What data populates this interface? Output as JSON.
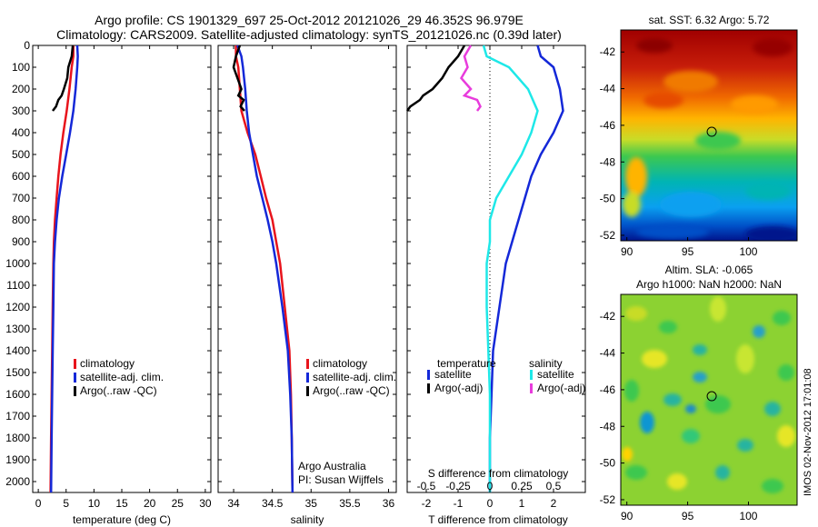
{
  "header": {
    "line1": "Argo profile: CS 1901329_697 25-Oct-2012 20121026_29 46.352S 96.979E",
    "line2": "Climatology: CARS2009. Satellite-adjusted climatology: synTS_20121026.nc (0.39d later)"
  },
  "stamp": "IMOS 02-Nov-2012 17:01:08",
  "colors": {
    "red": "#e8141c",
    "blue": "#1428d8",
    "black": "#000000",
    "cyan": "#1ee8e8",
    "magenta": "#e83cdc"
  },
  "chart_data": [
    {
      "type": "line",
      "xlabel": "temperature (deg C)",
      "xlim": [
        -1,
        31
      ],
      "ylim": [
        0,
        2050
      ],
      "xticks": [
        "0",
        "5",
        "10",
        "15",
        "20",
        "25",
        "30"
      ],
      "xtick_values": [
        0,
        5,
        10,
        15,
        20,
        25,
        30
      ],
      "yticks": [
        "0",
        "100",
        "200",
        "300",
        "400",
        "500",
        "600",
        "700",
        "800",
        "900",
        "1000",
        "1100",
        "1200",
        "1300",
        "1400",
        "1500",
        "1600",
        "1700",
        "1800",
        "1900",
        "2000"
      ],
      "legend": [
        "climatology",
        "satellite-adj. clim.",
        "Argo(..raw -QC)"
      ],
      "legend_placement": "bottom-center",
      "series": [
        {
          "name": "climatology",
          "color": "red",
          "x": [
            6.3,
            6.3,
            6.0,
            5.6,
            5.1,
            4.5,
            4.0,
            3.6,
            3.3,
            3.0,
            2.8,
            2.7,
            2.6,
            2.5,
            2.4,
            2.3,
            2.2
          ],
          "y": [
            0,
            50,
            100,
            200,
            300,
            400,
            500,
            600,
            700,
            800,
            900,
            1000,
            1200,
            1400,
            1600,
            1800,
            2050
          ]
        },
        {
          "name": "satellite-adj. clim.",
          "color": "blue",
          "x": [
            7.0,
            7.1,
            7.0,
            6.7,
            6.3,
            5.7,
            5.0,
            4.3,
            3.7,
            3.3,
            3.0,
            2.8,
            2.7,
            2.6,
            2.5,
            2.4,
            2.3
          ],
          "y": [
            0,
            50,
            100,
            200,
            300,
            400,
            500,
            600,
            700,
            800,
            900,
            1000,
            1200,
            1400,
            1600,
            1800,
            2050
          ]
        },
        {
          "name": "Argo(..raw -QC)",
          "color": "black",
          "x": [
            6.2,
            6.0,
            5.4,
            5.2,
            4.6,
            4.2,
            3.6,
            3.2,
            2.6
          ],
          "y": [
            0,
            50,
            100,
            150,
            200,
            230,
            250,
            280,
            300
          ]
        }
      ]
    },
    {
      "type": "line",
      "xlabel": "salinity",
      "xlim": [
        33.8,
        36.1
      ],
      "ylim": [
        0,
        2050
      ],
      "xticks": [
        "34",
        "34.5",
        "35",
        "35.5",
        "36"
      ],
      "xtick_values": [
        34,
        34.5,
        35,
        35.5,
        36
      ],
      "legend": [
        "climatology",
        "satellite-adj. clim.",
        "Argo(..raw -QC)"
      ],
      "legend_placement": "bottom-center",
      "annotation": [
        "Argo Australia",
        "PI: Susan Wijffels"
      ],
      "series": [
        {
          "name": "climatology",
          "color": "red",
          "x": [
            34.03,
            34.03,
            34.06,
            34.08,
            34.1,
            34.18,
            34.28,
            34.35,
            34.42,
            34.5,
            34.55,
            34.6,
            34.66,
            34.72,
            34.74,
            34.75,
            34.76
          ],
          "y": [
            0,
            50,
            100,
            200,
            300,
            400,
            500,
            600,
            700,
            800,
            900,
            1000,
            1200,
            1400,
            1600,
            1800,
            2050
          ]
        },
        {
          "name": "satellite-adj. clim.",
          "color": "blue",
          "x": [
            34.05,
            34.1,
            34.12,
            34.15,
            34.17,
            34.2,
            34.25,
            34.3,
            34.37,
            34.44,
            34.5,
            34.55,
            34.63,
            34.7,
            34.73,
            34.75,
            34.76
          ],
          "y": [
            0,
            50,
            100,
            200,
            300,
            400,
            500,
            600,
            700,
            800,
            900,
            1000,
            1200,
            1400,
            1600,
            1800,
            2050
          ]
        },
        {
          "name": "Argo(..raw -QC)",
          "color": "black",
          "x": [
            34.08,
            34.03,
            34.0,
            34.05,
            34.1,
            34.06,
            34.13,
            34.09,
            34.14
          ],
          "y": [
            0,
            50,
            100,
            150,
            200,
            230,
            250,
            280,
            300
          ]
        }
      ]
    },
    {
      "type": "line",
      "xlabel": "T difference from climatology",
      "toplabel": "S difference from climatology",
      "xlim": [
        -2.6,
        3.0
      ],
      "ylim": [
        0,
        2050
      ],
      "xticks": [
        "-2",
        "-1",
        "0",
        "1",
        "2"
      ],
      "xtick_values": [
        -2,
        -1,
        0,
        1,
        2
      ],
      "sticks": [
        "-0.5",
        "-0.25",
        "0",
        "0.25",
        "0.5"
      ],
      "stick_values": [
        -2,
        -1,
        0,
        1,
        2
      ],
      "legend_groups": [
        {
          "title": "temperature",
          "items": [
            "satellite",
            "Argo(-adj)"
          ]
        },
        {
          "title": "salinity",
          "items": [
            "satellite",
            "Argo(-adj)"
          ]
        }
      ],
      "series": [
        {
          "name": "temperature satellite",
          "color": "blue",
          "x": [
            1.5,
            1.6,
            2.0,
            2.2,
            2.3,
            2.0,
            1.6,
            1.3,
            1.1,
            0.9,
            0.7,
            0.5,
            0.3,
            0.1,
            0.05,
            0.0,
            0.0
          ],
          "y": [
            0,
            50,
            100,
            200,
            300,
            400,
            500,
            600,
            700,
            800,
            900,
            1000,
            1200,
            1400,
            1600,
            1800,
            2050
          ]
        },
        {
          "name": "temperature Argo(-adj)",
          "color": "black",
          "x": [
            -0.8,
            -1.0,
            -1.3,
            -1.5,
            -1.8,
            -2.1,
            -2.2,
            -2.5,
            -2.6
          ],
          "y": [
            0,
            50,
            100,
            150,
            200,
            230,
            250,
            280,
            300
          ]
        },
        {
          "name": "salinity satellite",
          "color": "cyan",
          "x": [
            -0.2,
            -0.1,
            0.6,
            1.2,
            1.5,
            1.3,
            1.0,
            0.6,
            0.2,
            0.0,
            0.0,
            -0.1,
            -0.1,
            -0.05,
            0.0,
            0.0,
            0.0
          ],
          "y": [
            0,
            50,
            100,
            200,
            300,
            400,
            500,
            600,
            700,
            800,
            900,
            1000,
            1200,
            1400,
            1600,
            1800,
            2050
          ]
        },
        {
          "name": "salinity Argo(-adj)",
          "color": "magenta",
          "x": [
            -0.6,
            -0.8,
            -0.7,
            -0.9,
            -0.6,
            -0.8,
            -0.4,
            -0.3,
            -0.4
          ],
          "y": [
            0,
            50,
            100,
            150,
            200,
            230,
            250,
            280,
            300
          ]
        }
      ]
    },
    {
      "type": "heatmap",
      "title": "sat. SST: 6.32 Argo: 5.72",
      "xticks": [
        "90",
        "95",
        "100"
      ],
      "xtick_values": [
        90,
        95,
        100
      ],
      "yticks": [
        "-42",
        "-44",
        "-46",
        "-48",
        "-50",
        "-52"
      ],
      "ytick_values": [
        -42,
        -44,
        -46,
        -48,
        -50,
        -52
      ],
      "xlim": [
        89.5,
        104
      ],
      "ylim": [
        -52.3,
        -40.8
      ],
      "marker": {
        "x": 96.979,
        "y": -46.352
      }
    },
    {
      "type": "heatmap",
      "title": "Altim. SLA: -0.065",
      "subtitle": "Argo h1000: NaN h2000: NaN",
      "xticks": [
        "90",
        "95",
        "100"
      ],
      "xtick_values": [
        90,
        95,
        100
      ],
      "yticks": [
        "-42",
        "-44",
        "-46",
        "-48",
        "-50",
        "-52"
      ],
      "ytick_values": [
        -42,
        -44,
        -46,
        -48,
        -50,
        -52
      ],
      "xlim": [
        89.5,
        104
      ],
      "ylim": [
        -52.3,
        -40.8
      ],
      "marker": {
        "x": 96.979,
        "y": -46.352
      }
    }
  ]
}
